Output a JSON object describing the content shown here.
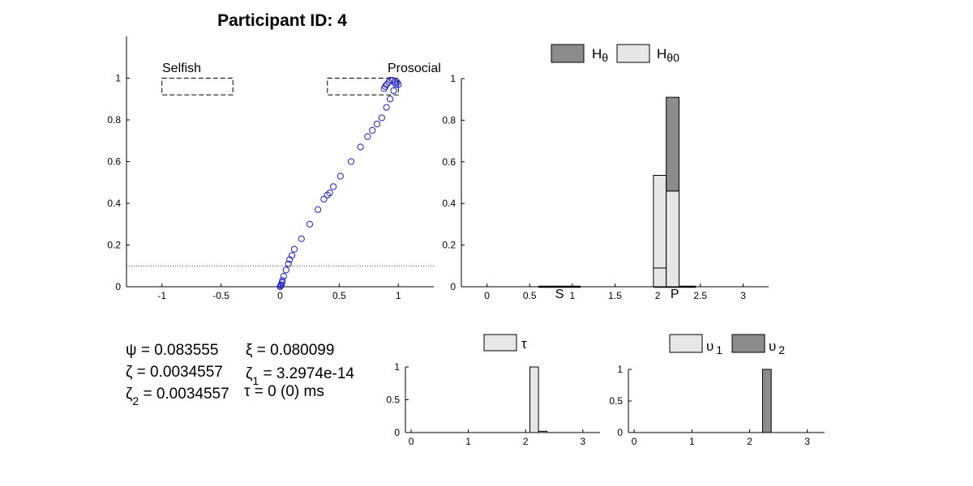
{
  "title": "Participant ID: 4",
  "parameters": {
    "psi": "ψ = 0.083555",
    "xi": "ξ = 0.080099",
    "zeta": "ζ = 0.0034557",
    "zeta1_sym": "ζ",
    "zeta1_sub": "1",
    "zeta1_val": " = 3.2974e-14",
    "zeta2_sym": "ζ",
    "zeta2_sub": "2",
    "zeta2_val": " = 0.0034557",
    "tau_line": "τ = 0 (0) ms"
  },
  "colors": {
    "marker": "#1a1acc",
    "dark_bar": "#8c8c8c",
    "light_bar": "#e6e6e6"
  },
  "chart_data": [
    {
      "type": "scatter",
      "xlim": [
        -1.3,
        1.3
      ],
      "ylim": [
        0,
        1.2
      ],
      "xticks": [
        -1,
        -0.5,
        0,
        0.5,
        1
      ],
      "yticks": [
        0,
        0.2,
        0.4,
        0.6,
        0.8,
        1
      ],
      "xtick_labels": [
        "-1",
        "-0.5",
        "0",
        "0.5",
        "1"
      ],
      "ytick_labels": [
        "0",
        "0.2",
        "0.4",
        "0.6",
        "0.8",
        "1"
      ],
      "region_labels": [
        "Selfish",
        "Prosocial"
      ],
      "reference_line_y": 0.1,
      "boxes": [
        {
          "label": "Selfish",
          "x": [
            -1,
            -0.4
          ],
          "y": [
            0.92,
            1.0
          ]
        },
        {
          "label": "Prosocial",
          "x": [
            0.4,
            1.0
          ],
          "y": [
            0.92,
            1.0
          ]
        }
      ],
      "points": [
        [
          0,
          0
        ],
        [
          0.005,
          0.005
        ],
        [
          0.01,
          0.01
        ],
        [
          0.015,
          0.02
        ],
        [
          0.02,
          0.03
        ],
        [
          0.03,
          0.05
        ],
        [
          0.05,
          0.08
        ],
        [
          0.07,
          0.11
        ],
        [
          0.08,
          0.13
        ],
        [
          0.1,
          0.15
        ],
        [
          0.12,
          0.18
        ],
        [
          0.18,
          0.23
        ],
        [
          0.25,
          0.3
        ],
        [
          0.32,
          0.37
        ],
        [
          0.37,
          0.42
        ],
        [
          0.4,
          0.44
        ],
        [
          0.42,
          0.45
        ],
        [
          0.45,
          0.48
        ],
        [
          0.51,
          0.53
        ],
        [
          0.6,
          0.6
        ],
        [
          0.68,
          0.67
        ],
        [
          0.74,
          0.72
        ],
        [
          0.78,
          0.75
        ],
        [
          0.82,
          0.78
        ],
        [
          0.86,
          0.81
        ],
        [
          0.9,
          0.86
        ],
        [
          0.93,
          0.9
        ],
        [
          0.96,
          0.94
        ],
        [
          0.88,
          0.95
        ],
        [
          0.89,
          0.96
        ],
        [
          0.9,
          0.97
        ],
        [
          0.92,
          0.98
        ],
        [
          0.93,
          0.99
        ],
        [
          0.95,
          0.99
        ],
        [
          0.97,
          0.98
        ],
        [
          0.98,
          0.97
        ],
        [
          1.0,
          0.97
        ],
        [
          0.99,
          0.98
        ]
      ]
    },
    {
      "type": "bar",
      "stacked": true,
      "xlim": [
        -0.3,
        3.3
      ],
      "ylim": [
        0,
        1
      ],
      "xticks": [
        0,
        0.5,
        1,
        1.5,
        2,
        2.5,
        3
      ],
      "xtick_labels": [
        "0",
        "0.5",
        "1",
        "1.5",
        "2",
        "2.5",
        "3"
      ],
      "yticks": [
        0,
        0.2,
        0.4,
        0.6,
        0.8,
        1
      ],
      "ytick_labels": [
        "0",
        "0.2",
        "0.4",
        "0.6",
        "0.8",
        "1"
      ],
      "axis_markers": [
        {
          "label": "S",
          "x": 0.85
        },
        {
          "label": "P",
          "x": 2.2
        }
      ],
      "legend": {
        "position": "top",
        "entries": [
          {
            "symbol": "H",
            "sub": "θ",
            "color": "dark"
          },
          {
            "symbol": "H",
            "sub": "θ0",
            "color": "light"
          }
        ]
      },
      "bin_width": 0.15,
      "series": [
        {
          "name": "Hθ0",
          "color": "light",
          "bars": [
            {
              "x": 2.025,
              "value": 0.535,
              "inner_line": 0.09
            },
            {
              "x": 2.175,
              "value": 0.46
            }
          ]
        },
        {
          "name": "Hθ",
          "color": "dark",
          "bars": [
            {
              "x": 2.175,
              "value": 0.45
            }
          ]
        }
      ]
    },
    {
      "type": "bar",
      "xlim": [
        -0.1,
        3.3
      ],
      "ylim": [
        0,
        1
      ],
      "xticks": [
        0,
        1,
        2,
        3
      ],
      "xtick_labels": [
        "0",
        "1",
        "2",
        "3"
      ],
      "yticks": [
        0,
        0.5,
        1
      ],
      "ytick_labels": [
        "0",
        "0.5",
        "1"
      ],
      "legend": {
        "position": "top",
        "entries": [
          {
            "symbol": "τ",
            "sub": "",
            "color": "light"
          }
        ]
      },
      "bin_width": 0.15,
      "series": [
        {
          "name": "τ",
          "color": "light",
          "bars": [
            {
              "x": 2.15,
              "value": 1.0
            },
            {
              "x": 2.3,
              "value": 0.02
            }
          ]
        }
      ]
    },
    {
      "type": "bar",
      "xlim": [
        -0.1,
        3.3
      ],
      "ylim": [
        0,
        1
      ],
      "xticks": [
        0,
        1,
        2,
        3
      ],
      "xtick_labels": [
        "0",
        "1",
        "2",
        "3"
      ],
      "yticks": [
        0,
        0.5,
        1
      ],
      "ytick_labels": [
        "0",
        "0.5",
        "1"
      ],
      "legend": {
        "position": "top",
        "entries": [
          {
            "symbol": "υ",
            "sub": "1",
            "color": "light"
          },
          {
            "symbol": "υ",
            "sub": "2",
            "color": "dark"
          }
        ]
      },
      "bin_width": 0.15,
      "series": [
        {
          "name": "υ2",
          "color": "dark",
          "bars": [
            {
              "x": 2.3,
              "value": 1.0
            }
          ]
        }
      ]
    }
  ]
}
